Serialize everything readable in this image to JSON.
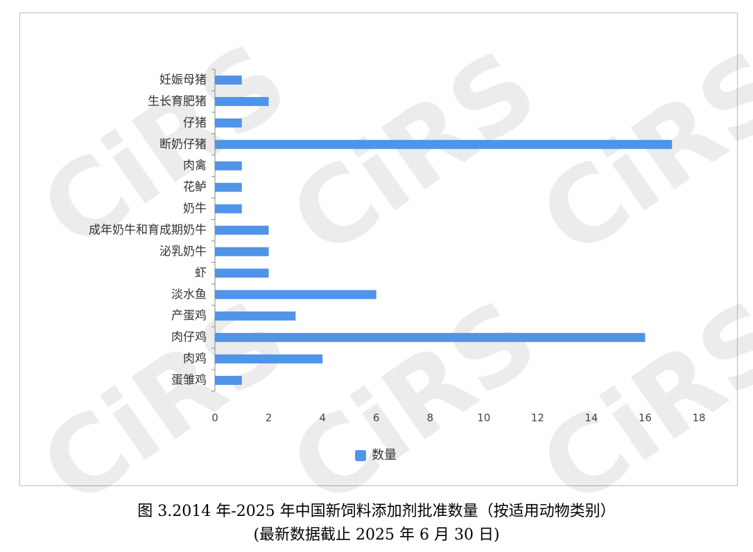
{
  "chart_data": {
    "type": "bar",
    "orientation": "horizontal",
    "title": "图 3.2014 年-2025 年中国新饲料添加剂批准数量（按适用动物类别）",
    "subtitle": "(最新数据截止 2025 年 6 月 30 日)",
    "watermark": "CiRS",
    "categories": [
      "妊娠母猪",
      "生长育肥猪",
      "仔猪",
      "断奶仔猪",
      "肉禽",
      "花鲈",
      "奶牛",
      "成年奶牛和育成期奶牛",
      "泌乳奶牛",
      "虾",
      "淡水鱼",
      "产蛋鸡",
      "肉仔鸡",
      "肉鸡",
      "蛋雏鸡"
    ],
    "series": [
      {
        "name": "数量",
        "color": "#4f94e8",
        "values": [
          1,
          2,
          1,
          17,
          1,
          1,
          1,
          2,
          2,
          2,
          6,
          3,
          16,
          4,
          1
        ]
      }
    ],
    "xlim": [
      0,
      18
    ],
    "xticks": [
      0,
      2,
      4,
      6,
      8,
      10,
      12,
      14,
      16,
      18
    ],
    "grid": false,
    "legend": "bottom"
  }
}
